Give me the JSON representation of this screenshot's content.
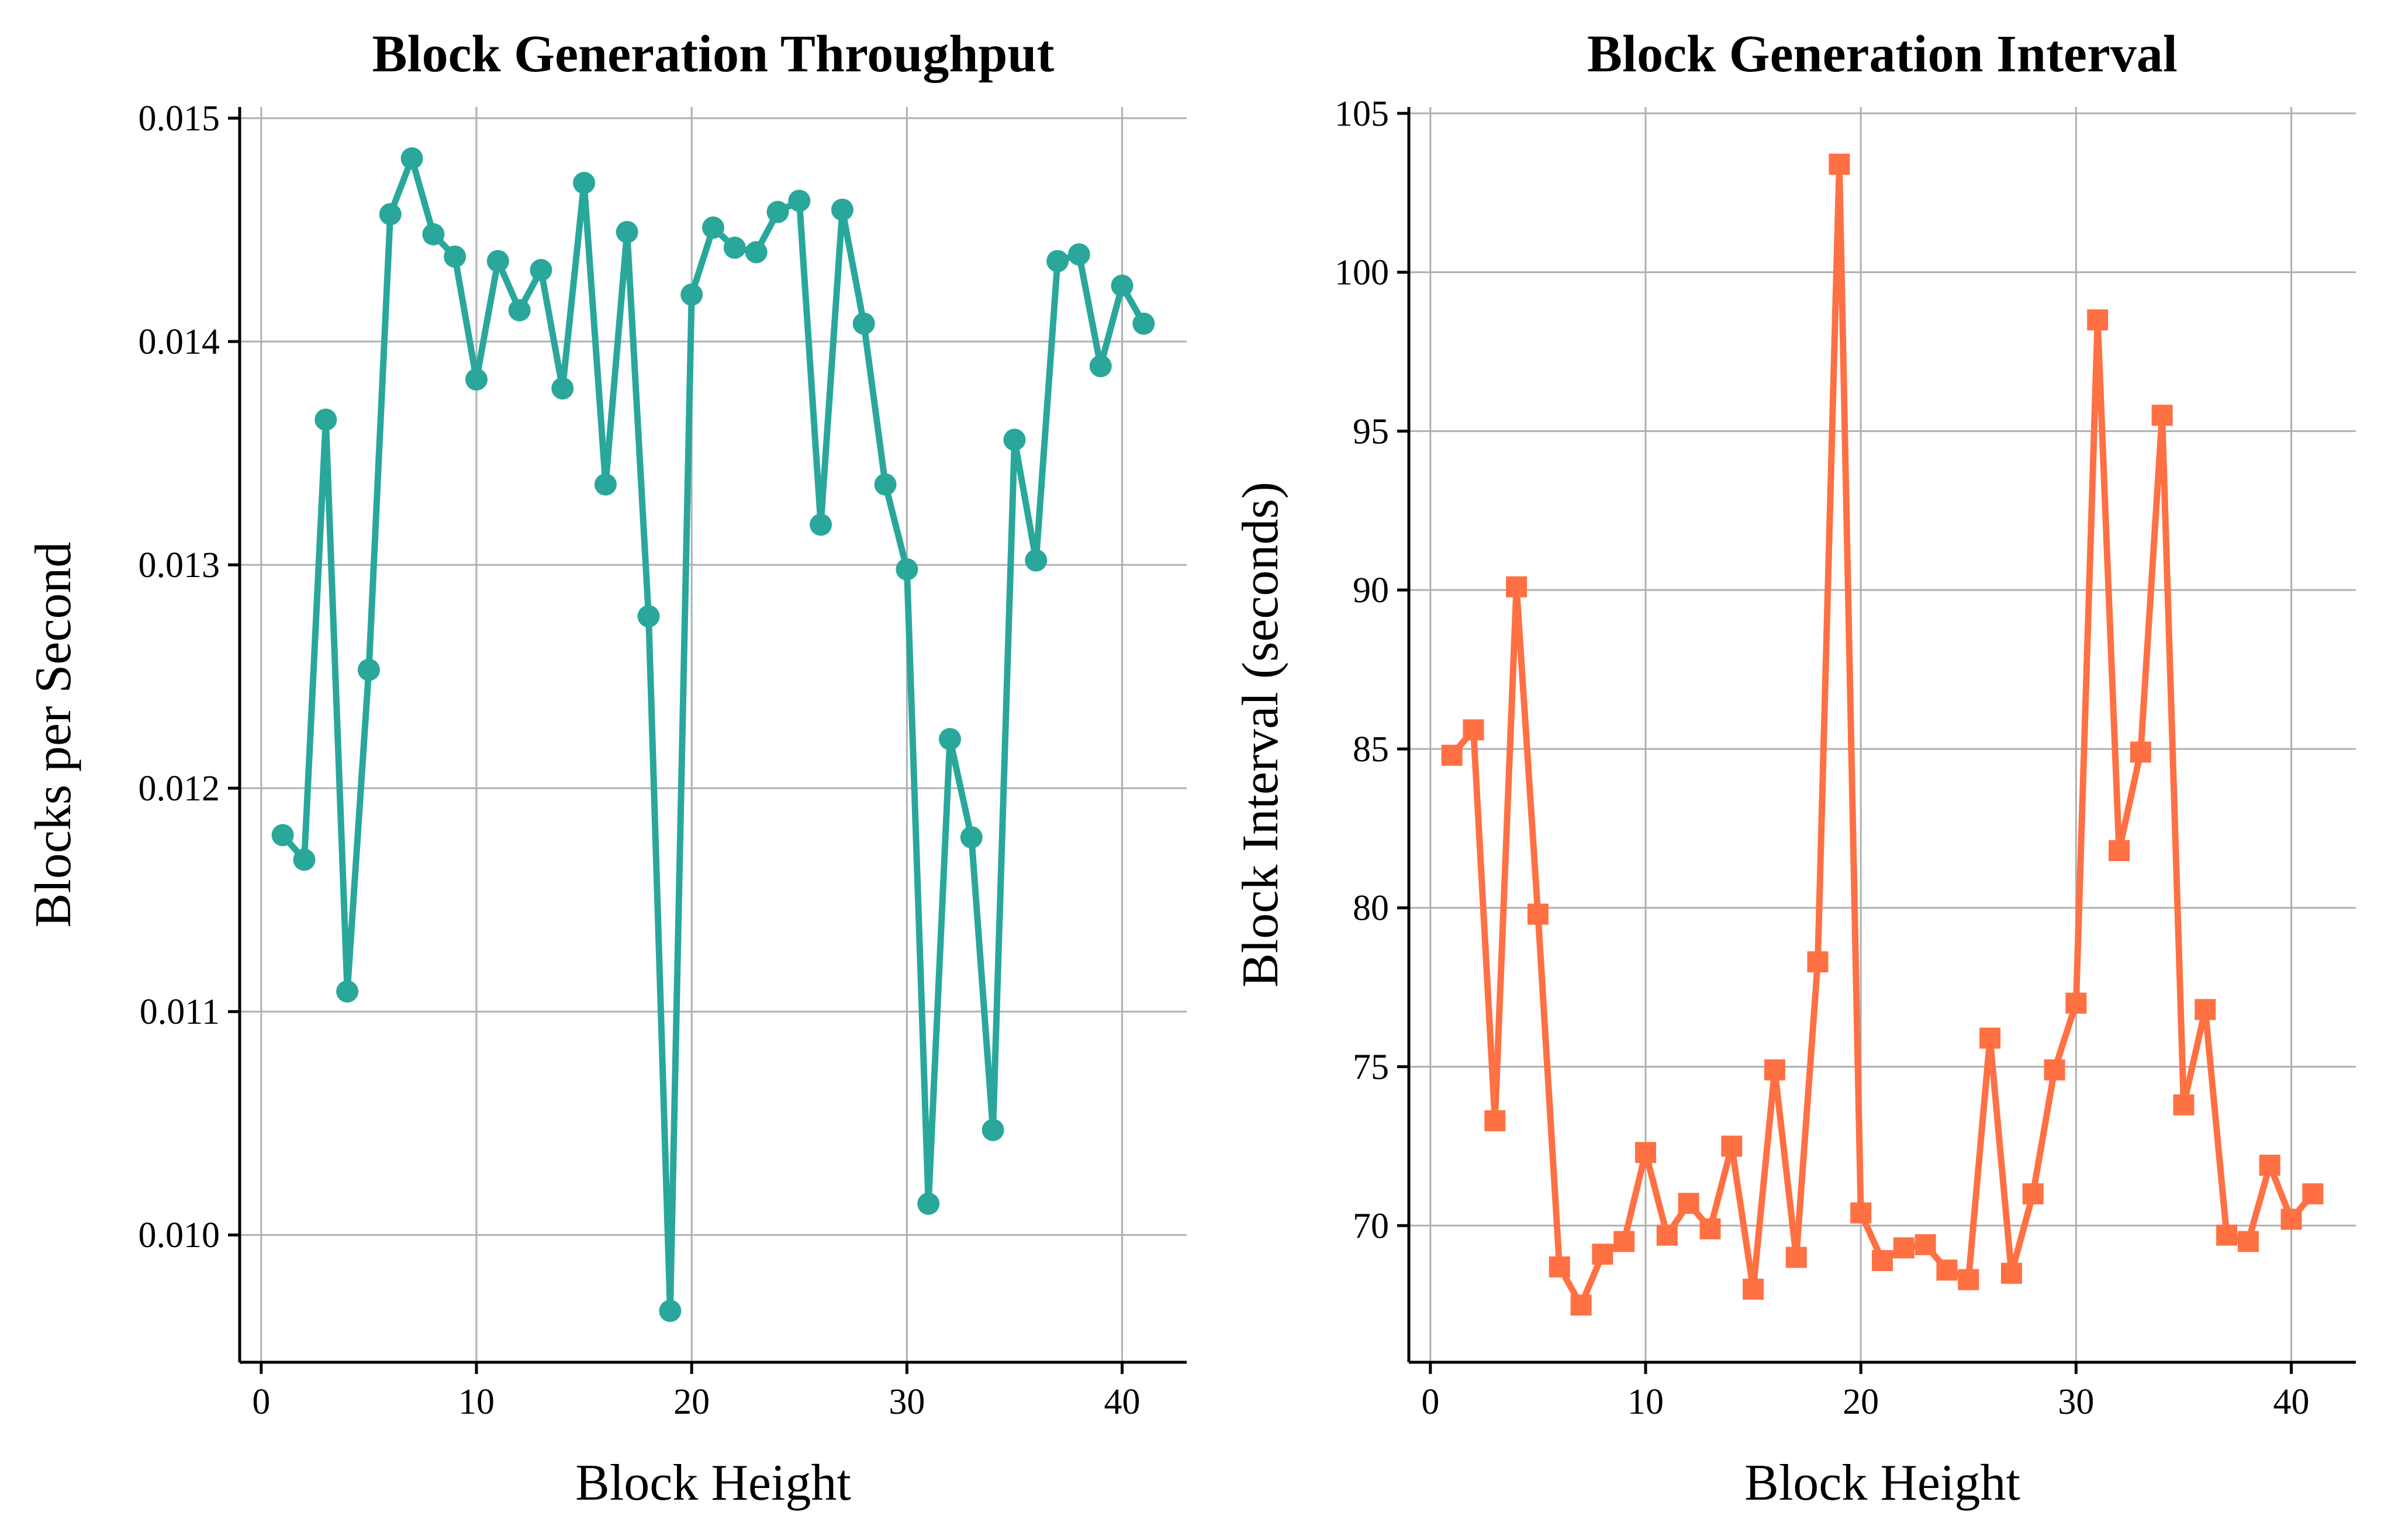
{
  "chart_data": [
    {
      "type": "line",
      "title": "Block Generation Throughput",
      "xlabel": "Block Height",
      "ylabel": "Blocks per Second",
      "xlim": [
        -1,
        43
      ],
      "ylim": [
        0.00943,
        0.01505
      ],
      "xticks": [
        0,
        10,
        20,
        30,
        40
      ],
      "xtick_labels": [
        "0",
        "10",
        "20",
        "30",
        "40"
      ],
      "yticks": [
        0.01,
        0.011,
        0.012,
        0.013,
        0.014,
        0.015
      ],
      "ytick_labels": [
        "0.010",
        "0.011",
        "0.012",
        "0.013",
        "0.014",
        "0.015"
      ],
      "grid": true,
      "series": [
        {
          "color": "#2aa79b",
          "marker": "circle",
          "x": [
            1,
            2,
            3,
            4,
            5,
            6,
            7,
            8,
            9,
            10,
            11,
            12,
            13,
            14,
            15,
            16,
            17,
            18,
            19,
            20,
            21,
            22,
            23,
            24,
            25,
            26,
            27,
            28,
            29,
            30,
            31,
            32,
            33,
            34,
            35,
            36,
            37,
            38,
            39,
            40,
            41
          ],
          "y": [
            0.01179,
            0.01168,
            0.01365,
            0.01109,
            0.01253,
            0.01457,
            0.01482,
            0.01448,
            0.01438,
            0.01383,
            0.01436,
            0.01414,
            0.01432,
            0.01379,
            0.01471,
            0.01336,
            0.01449,
            0.01277,
            0.00966,
            0.01421,
            0.01451,
            0.01442,
            0.0144,
            0.01458,
            0.01463,
            0.01318,
            0.01459,
            0.01408,
            0.01336,
            0.01298,
            0.01014,
            0.01222,
            0.01178,
            0.01047,
            0.01356,
            0.01302,
            0.01436,
            0.01439,
            0.01389,
            0.01425,
            0.01408
          ]
        }
      ]
    },
    {
      "type": "line",
      "title": "Block Generation Interval",
      "xlabel": "Block Height",
      "ylabel": "Block Interval (seconds)",
      "xlim": [
        -1,
        43
      ],
      "ylim": [
        65.7,
        105.2
      ],
      "xticks": [
        0,
        10,
        20,
        30,
        40
      ],
      "xtick_labels": [
        "0",
        "10",
        "20",
        "30",
        "40"
      ],
      "yticks": [
        70,
        75,
        80,
        85,
        90,
        95,
        100,
        105
      ],
      "ytick_labels": [
        "70",
        "75",
        "80",
        "85",
        "90",
        "95",
        "100",
        "105"
      ],
      "grid": true,
      "series": [
        {
          "color": "#ff7043",
          "marker": "square",
          "x": [
            1,
            2,
            3,
            4,
            5,
            6,
            7,
            8,
            9,
            10,
            11,
            12,
            13,
            14,
            15,
            16,
            17,
            18,
            19,
            20,
            21,
            22,
            23,
            24,
            25,
            26,
            27,
            28,
            29,
            30,
            31,
            32,
            33,
            34,
            35,
            36,
            37,
            38,
            39,
            40,
            41
          ],
          "y": [
            84.8,
            85.6,
            73.3,
            90.1,
            79.8,
            68.7,
            67.5,
            69.1,
            69.5,
            72.3,
            69.7,
            70.7,
            69.9,
            72.5,
            68.0,
            74.9,
            69.0,
            78.3,
            103.4,
            70.4,
            68.9,
            69.3,
            69.4,
            68.6,
            68.3,
            75.9,
            68.5,
            71.0,
            74.9,
            77.0,
            98.5,
            81.8,
            84.9,
            95.5,
            73.8,
            76.8,
            69.7,
            69.5,
            71.9,
            70.2,
            71.0
          ]
        }
      ]
    }
  ]
}
